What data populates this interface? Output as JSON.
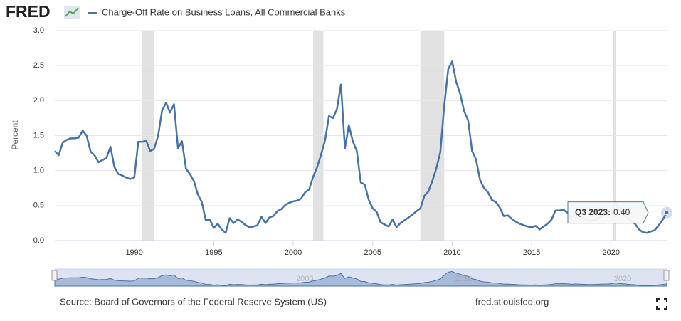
{
  "logo": "FRED",
  "source": "Source: Board of Governors of the Federal Reserve System (US)",
  "site": "fred.stlouisfed.org",
  "chart_data": {
    "type": "line",
    "y_label": "Percent",
    "series": [
      {
        "name": "Charge-Off Rate on Business Loans, All Commercial Banks",
        "color": "#4572a7",
        "values": [
          1.28,
          1.22,
          1.4,
          1.44,
          1.46,
          1.46,
          1.47,
          1.57,
          1.5,
          1.27,
          1.22,
          1.12,
          1.15,
          1.18,
          1.34,
          1.05,
          0.95,
          0.93,
          0.9,
          0.88,
          0.9,
          1.41,
          1.41,
          1.43,
          1.28,
          1.31,
          1.5,
          1.86,
          1.97,
          1.83,
          1.95,
          1.32,
          1.42,
          1.03,
          0.95,
          0.85,
          0.66,
          0.55,
          0.29,
          0.3,
          0.18,
          0.24,
          0.16,
          0.11,
          0.32,
          0.25,
          0.3,
          0.27,
          0.22,
          0.19,
          0.2,
          0.22,
          0.34,
          0.25,
          0.33,
          0.35,
          0.42,
          0.45,
          0.51,
          0.54,
          0.56,
          0.57,
          0.6,
          0.69,
          0.73,
          0.91,
          1.05,
          1.23,
          1.43,
          1.78,
          1.75,
          1.88,
          2.23,
          1.32,
          1.65,
          1.42,
          1.28,
          0.83,
          0.8,
          0.58,
          0.46,
          0.41,
          0.26,
          0.23,
          0.2,
          0.3,
          0.19,
          0.25,
          0.29,
          0.33,
          0.37,
          0.42,
          0.46,
          0.64,
          0.7,
          0.85,
          1.03,
          1.26,
          1.93,
          2.45,
          2.56,
          2.27,
          2.1,
          1.85,
          1.72,
          1.28,
          1.16,
          0.87,
          0.75,
          0.69,
          0.58,
          0.55,
          0.47,
          0.35,
          0.36,
          0.31,
          0.27,
          0.24,
          0.22,
          0.2,
          0.19,
          0.21,
          0.16,
          0.2,
          0.24,
          0.3,
          0.43,
          0.43,
          0.44,
          0.4,
          0.33,
          0.38,
          0.35,
          0.32,
          0.29,
          0.28,
          0.3,
          0.33,
          0.36,
          0.38,
          0.42,
          0.55,
          0.45,
          0.4,
          0.34,
          0.28,
          0.24,
          0.16,
          0.12,
          0.11,
          0.13,
          0.15,
          0.22,
          0.3,
          0.4
        ]
      }
    ],
    "x": [
      1985,
      1985.25,
      1985.5,
      1985.75,
      1986,
      1986.25,
      1986.5,
      1986.75,
      1987,
      1987.25,
      1987.5,
      1987.75,
      1988,
      1988.25,
      1988.5,
      1988.75,
      1989,
      1989.25,
      1989.5,
      1989.75,
      1990,
      1990.25,
      1990.5,
      1990.75,
      1991,
      1991.25,
      1991.5,
      1991.75,
      1992,
      1992.25,
      1992.5,
      1992.75,
      1993,
      1993.25,
      1993.5,
      1993.75,
      1994,
      1994.25,
      1994.5,
      1994.75,
      1995,
      1995.25,
      1995.5,
      1995.75,
      1996,
      1996.25,
      1996.5,
      1996.75,
      1997,
      1997.25,
      1997.5,
      1997.75,
      1998,
      1998.25,
      1998.5,
      1998.75,
      1999,
      1999.25,
      1999.5,
      1999.75,
      2000,
      2000.25,
      2000.5,
      2000.75,
      2001,
      2001.25,
      2001.5,
      2001.75,
      2002,
      2002.25,
      2002.5,
      2002.75,
      2003,
      2003.25,
      2003.5,
      2003.75,
      2004,
      2004.25,
      2004.5,
      2004.75,
      2005,
      2005.25,
      2005.5,
      2005.75,
      2006,
      2006.25,
      2006.5,
      2006.75,
      2007,
      2007.25,
      2007.5,
      2007.75,
      2008,
      2008.25,
      2008.5,
      2008.75,
      2009,
      2009.25,
      2009.5,
      2009.75,
      2010,
      2010.25,
      2010.5,
      2010.75,
      2011,
      2011.25,
      2011.5,
      2011.75,
      2012,
      2012.25,
      2012.5,
      2012.75,
      2013,
      2013.25,
      2013.5,
      2013.75,
      2014,
      2014.25,
      2014.5,
      2014.75,
      2015,
      2015.25,
      2015.5,
      2015.75,
      2016,
      2016.25,
      2016.5,
      2016.75,
      2017,
      2017.25,
      2017.5,
      2017.75,
      2018,
      2018.25,
      2018.5,
      2018.75,
      2019,
      2019.25,
      2019.5,
      2019.75,
      2020,
      2020.25,
      2020.5,
      2020.75,
      2021,
      2021.25,
      2021.5,
      2021.75,
      2022,
      2022.25,
      2022.5,
      2022.75,
      2023,
      2023.25,
      2023.5
    ],
    "xlim": [
      1985,
      2023.5
    ],
    "xticks": [
      1990,
      1995,
      2000,
      2005,
      2010,
      2015,
      2020
    ],
    "ylim": [
      0,
      3
    ],
    "yticks": [
      {
        "value": 0,
        "label": "0.0"
      },
      {
        "value": 0.5,
        "label": "0.5"
      },
      {
        "value": 1,
        "label": "1.0"
      },
      {
        "value": 1.5,
        "label": "1.5"
      },
      {
        "value": 2,
        "label": "2.0"
      },
      {
        "value": 2.5,
        "label": "2.5"
      },
      {
        "value": 3,
        "label": "3.0"
      }
    ],
    "grid": true,
    "recessions": [
      [
        1990.5,
        1991.25
      ],
      [
        2001.25,
        2001.9
      ],
      [
        2008,
        2009.5
      ],
      [
        2020.1,
        2020.3
      ]
    ],
    "navigator_xticks": [
      2000,
      2010,
      2020
    ],
    "tooltip": {
      "label": "Q3 2023:",
      "value": 0.4,
      "value_label": "0.40"
    }
  }
}
